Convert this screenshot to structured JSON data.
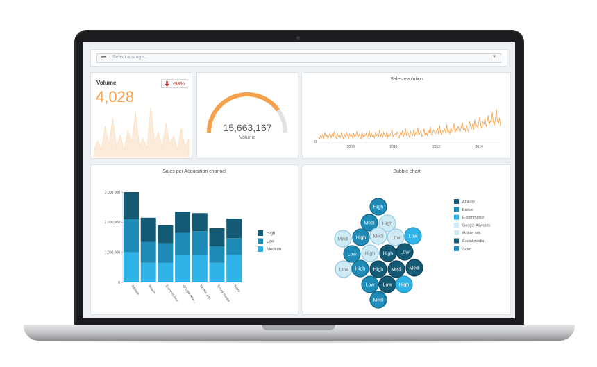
{
  "colors": {
    "dark": "#155a75",
    "mid": "#1e8bb7",
    "light": "#2fb2e6",
    "pale": "#cdeaf5",
    "orange": "#f5a04a",
    "negative": "#c9302c"
  },
  "range_select": {
    "placeholder": "Select a range...",
    "icon": "calendar-icon"
  },
  "volume_kpi": {
    "label": "Volume",
    "value": "4,028",
    "change": "-93%",
    "change_icon": "arrow-down-icon"
  },
  "gauge": {
    "value": "15,663,167",
    "label": "Volume",
    "fill_fraction": 0.8
  },
  "sales_evolution": {
    "title": "Sales evolution",
    "chart_data": {
      "type": "line",
      "title": "Sales evolution",
      "y_tick_labels": [
        "0"
      ],
      "x_tick_labels": [
        "2008",
        "2010",
        "2012",
        "2014"
      ],
      "xlim": [
        2006.5,
        2015
      ],
      "ylim": [
        0,
        100
      ],
      "series": [
        {
          "values": [
            14,
            8,
            18,
            11,
            22,
            9,
            26,
            13,
            19,
            7,
            16,
            24,
            10,
            21,
            12,
            28,
            15,
            9,
            23,
            14,
            18,
            11,
            25,
            17,
            8,
            20,
            13,
            27,
            16,
            10,
            22,
            14,
            19,
            9,
            24,
            12,
            17,
            29,
            11,
            21,
            15,
            8,
            26,
            13,
            20,
            16,
            23,
            10,
            18,
            31,
            12,
            24,
            14,
            19,
            9,
            27,
            16,
            21,
            13,
            33,
            15,
            22,
            11,
            26,
            18,
            14,
            29,
            12,
            20,
            16,
            24,
            35,
            13,
            19,
            22,
            15,
            28,
            17,
            10,
            25,
            19,
            31,
            14,
            22,
            38,
            16,
            27,
            20,
            12,
            29,
            23,
            18,
            34,
            15,
            26,
            21,
            40,
            17,
            24,
            30,
            14,
            22,
            36,
            19,
            27,
            16,
            31,
            25,
            42,
            20,
            18,
            33,
            26,
            22,
            29,
            37,
            21,
            45,
            24,
            19,
            31,
            27,
            35,
            23,
            48,
            26,
            30,
            22,
            39,
            28,
            33,
            51,
            25,
            36,
            29,
            44,
            31,
            27,
            40,
            55,
            33,
            38,
            30,
            47,
            35,
            29,
            58,
            42,
            36,
            49,
            33,
            62,
            40,
            46,
            38,
            54,
            71,
            44,
            39,
            57,
            48,
            66,
            42,
            52,
            74,
            46,
            59,
            50,
            83,
            55,
            47,
            63,
            92,
            58,
            51,
            67,
            44
          ]
        }
      ]
    }
  },
  "acquisition_chart": {
    "title": "Sales per Acquisition channel",
    "chart_data": {
      "type": "bar",
      "stacked": true,
      "title": "Sales per Acquisition channel",
      "categories": [
        "Affiliate",
        "Broker",
        "E-commerce",
        "Google Adw...",
        "Mobile ads",
        "Social media",
        "Store"
      ],
      "ylim": [
        0,
        3000000
      ],
      "y_tick_labels": [
        "0",
        "1,000,000",
        "2,000,000",
        "3,000,000"
      ],
      "series": [
        {
          "name": "High",
          "values": [
            900000,
            800000,
            600000,
            700000,
            600000,
            600000,
            650000
          ]
        },
        {
          "name": "Low",
          "values": [
            1100000,
            700000,
            650000,
            750000,
            800000,
            550000,
            550000
          ]
        },
        {
          "name": "Medium",
          "values": [
            1000000,
            650000,
            650000,
            900000,
            900000,
            650000,
            920000
          ]
        }
      ],
      "legend_position": "right"
    }
  },
  "bubble_chart": {
    "title": "Bubble chart",
    "legend": [
      "Affiliate",
      "Broker",
      "E-commerce",
      "Google Adwords",
      "Mobile ads",
      "Social media",
      "Store"
    ],
    "legend_tones": [
      "dark",
      "mid",
      "light",
      "pale",
      "pale",
      "dark",
      "mid"
    ],
    "bubbles": [
      {
        "label": "High",
        "tone": "mid"
      },
      {
        "label": "Medi",
        "tone": "mid"
      },
      {
        "label": "High",
        "tone": "pale"
      },
      {
        "label": "Medi",
        "tone": "pale"
      },
      {
        "label": "High",
        "tone": "mid"
      },
      {
        "label": "Medi",
        "tone": "pale"
      },
      {
        "label": "Low",
        "tone": "pale"
      },
      {
        "label": "Low",
        "tone": "light"
      },
      {
        "label": "Low",
        "tone": "mid"
      },
      {
        "label": "High",
        "tone": "pale"
      },
      {
        "label": "High",
        "tone": "dark"
      },
      {
        "label": "Low",
        "tone": "dark"
      },
      {
        "label": "Low",
        "tone": "pale"
      },
      {
        "label": "High",
        "tone": "mid"
      },
      {
        "label": "High",
        "tone": "dark"
      },
      {
        "label": "Medi",
        "tone": "dark"
      },
      {
        "label": "Medi",
        "tone": "dark"
      },
      {
        "label": "Low",
        "tone": "mid"
      },
      {
        "label": "Low",
        "tone": "dark"
      },
      {
        "label": "High",
        "tone": "light"
      },
      {
        "label": "Medi",
        "tone": "mid"
      }
    ]
  }
}
